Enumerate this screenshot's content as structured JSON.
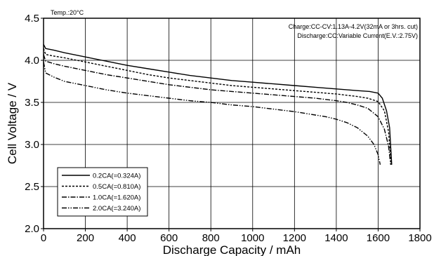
{
  "chart_data": {
    "type": "line",
    "xlabel": "Discharge  Capacity  /  mAh",
    "ylabel": "Cell Voltage  /  V",
    "xlim": [
      0,
      1800
    ],
    "ylim": [
      2.0,
      4.5
    ],
    "xticks": [
      "0",
      "200",
      "400",
      "600",
      "800",
      "1000",
      "1200",
      "1400",
      "1600",
      "1800"
    ],
    "yticks": [
      "2.0",
      "2.5",
      "3.0",
      "3.5",
      "4.0",
      "4.5"
    ],
    "grid": true,
    "temperature_note": "Temp.:20°C",
    "charge_note": "Charge:CC-CV:1.13A-4.2V(32mA or 3hrs. cut)",
    "discharge_note": "Discharge:CC:Variable Current(E.V.:2.75V)",
    "legend_position": "bottom-left",
    "series": [
      {
        "name": "0.2CA(=0.324A)",
        "line_style": "solid",
        "x": [
          0,
          10,
          50,
          100,
          200,
          300,
          400,
          500,
          600,
          700,
          800,
          900,
          1000,
          1100,
          1200,
          1300,
          1400,
          1500,
          1560,
          1600,
          1620,
          1640,
          1655,
          1665
        ],
        "y": [
          4.19,
          4.14,
          4.12,
          4.09,
          4.04,
          3.99,
          3.94,
          3.9,
          3.86,
          3.82,
          3.79,
          3.76,
          3.74,
          3.72,
          3.7,
          3.68,
          3.66,
          3.64,
          3.63,
          3.61,
          3.55,
          3.4,
          3.2,
          2.76
        ]
      },
      {
        "name": "0.5CA(=0.810A)",
        "line_style": "dashed",
        "x": [
          0,
          10,
          50,
          100,
          200,
          300,
          400,
          500,
          600,
          700,
          800,
          900,
          1000,
          1100,
          1200,
          1300,
          1400,
          1500,
          1550,
          1600,
          1630,
          1650,
          1662
        ],
        "y": [
          4.14,
          4.07,
          4.05,
          4.03,
          3.98,
          3.93,
          3.88,
          3.83,
          3.79,
          3.76,
          3.73,
          3.7,
          3.68,
          3.66,
          3.64,
          3.62,
          3.6,
          3.57,
          3.55,
          3.51,
          3.4,
          3.15,
          2.76
        ]
      },
      {
        "name": "1.0CA(=1.620A)",
        "line_style": "dash-dot",
        "x": [
          0,
          10,
          50,
          100,
          200,
          300,
          400,
          500,
          600,
          700,
          800,
          900,
          1000,
          1100,
          1200,
          1300,
          1400,
          1450,
          1500,
          1550,
          1600,
          1630,
          1650,
          1660
        ],
        "y": [
          4.07,
          3.99,
          3.96,
          3.93,
          3.88,
          3.83,
          3.79,
          3.75,
          3.71,
          3.68,
          3.65,
          3.63,
          3.61,
          3.59,
          3.57,
          3.55,
          3.52,
          3.5,
          3.47,
          3.43,
          3.33,
          3.18,
          2.98,
          2.76
        ]
      },
      {
        "name": "2.0CA(=3.240A)",
        "line_style": "dash-dot-dot",
        "x": [
          0,
          10,
          50,
          100,
          200,
          300,
          400,
          500,
          600,
          700,
          800,
          900,
          1000,
          1100,
          1200,
          1300,
          1350,
          1400,
          1450,
          1500,
          1550,
          1580,
          1600,
          1610
        ],
        "y": [
          3.98,
          3.85,
          3.8,
          3.75,
          3.7,
          3.65,
          3.61,
          3.58,
          3.55,
          3.52,
          3.5,
          3.47,
          3.45,
          3.42,
          3.39,
          3.35,
          3.33,
          3.3,
          3.26,
          3.2,
          3.1,
          3.0,
          2.88,
          2.76
        ]
      }
    ]
  }
}
